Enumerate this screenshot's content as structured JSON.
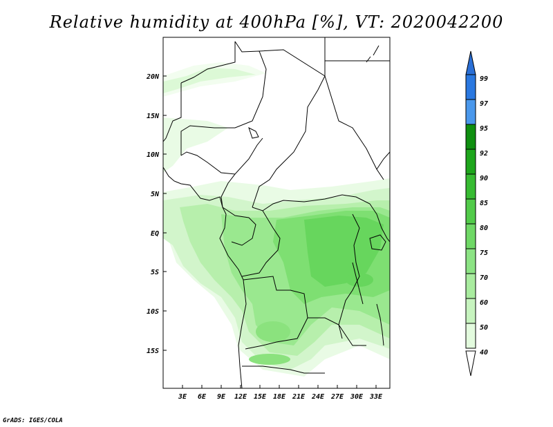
{
  "title": "Relative humidity at 400hPa [%], VT: 2020042200",
  "footer": "GrADS: IGES/COLA",
  "map": {
    "variable": "Relative humidity",
    "level": "400hPa",
    "unit": "%",
    "valid_time": "2020042200",
    "lat_labels": [
      "20N",
      "15N",
      "10N",
      "5N",
      "EQ",
      "5S",
      "10S",
      "15S"
    ],
    "lon_labels": [
      "3E",
      "6E",
      "9E",
      "12E",
      "15E",
      "18E",
      "21E",
      "24E",
      "27E",
      "30E",
      "33E"
    ]
  },
  "colorbar": {
    "labels": [
      "40",
      "50",
      "60",
      "70",
      "75",
      "80",
      "85",
      "90",
      "92",
      "95",
      "97",
      "99"
    ],
    "colors": [
      "#ffffff",
      "#e1fadc",
      "#c8f5c0",
      "#a6ec9c",
      "#8be27e",
      "#6ed964",
      "#4fcb47",
      "#33b52d",
      "#1a9c19",
      "#0d8a0d",
      "#3c8fe6",
      "#2a6fd6",
      "#1d5ec4"
    ]
  }
}
